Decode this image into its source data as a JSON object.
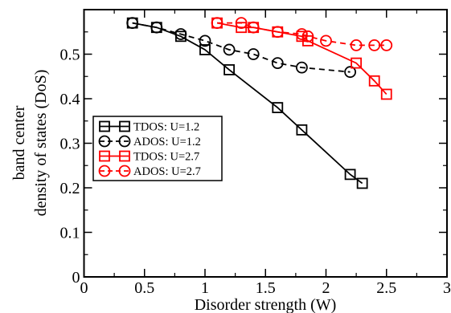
{
  "chart_data": {
    "type": "line",
    "title": "",
    "xlabel": "Disorder strength (W)",
    "ylabel_lines": [
      "band center",
      "density of states (DoS)"
    ],
    "xlim": [
      0,
      3
    ],
    "ylim": [
      0,
      0.6
    ],
    "xticks": [
      0,
      0.5,
      1,
      1.5,
      2,
      2.5,
      3
    ],
    "xtick_labels": [
      "0",
      "0.5",
      "1",
      "1.5",
      "2",
      "2.5",
      "3"
    ],
    "yticks": [
      0,
      0.1,
      0.2,
      0.3,
      0.4,
      0.5
    ],
    "ytick_labels": [
      "0",
      "0.1",
      "0.2",
      "0.3",
      "0.4",
      "0.5"
    ],
    "grid": false,
    "legend_position": "center-left",
    "series": [
      {
        "name": "TDOS: U=1.2",
        "color": "#000000",
        "marker": "square",
        "dash": "solid",
        "x": [
          0.4,
          0.6,
          0.8,
          1.0,
          1.2,
          1.6,
          1.8,
          2.2,
          2.3
        ],
        "y": [
          0.57,
          0.56,
          0.54,
          0.51,
          0.465,
          0.38,
          0.33,
          0.23,
          0.21
        ]
      },
      {
        "name": "ADOS: U=1.2",
        "color": "#000000",
        "marker": "circle",
        "dash": "dashed",
        "x": [
          0.4,
          0.6,
          0.8,
          1.0,
          1.2,
          1.4,
          1.6,
          1.8,
          2.2
        ],
        "y": [
          0.57,
          0.56,
          0.545,
          0.53,
          0.51,
          0.5,
          0.48,
          0.47,
          0.46
        ]
      },
      {
        "name": "TDOS: U=2.7",
        "color": "#ff0000",
        "marker": "square",
        "dash": "solid",
        "x": [
          1.1,
          1.3,
          1.4,
          1.6,
          1.8,
          1.85,
          2.25,
          2.4,
          2.5
        ],
        "y": [
          0.57,
          0.56,
          0.56,
          0.55,
          0.54,
          0.53,
          0.48,
          0.44,
          0.41
        ]
      },
      {
        "name": "ADOS: U=2.7",
        "color": "#ff0000",
        "marker": "circle",
        "dash": "dashed",
        "x": [
          1.1,
          1.3,
          1.4,
          1.6,
          1.8,
          1.85,
          2.0,
          2.25,
          2.4,
          2.5
        ],
        "y": [
          0.57,
          0.57,
          0.56,
          0.55,
          0.545,
          0.54,
          0.53,
          0.52,
          0.52,
          0.52
        ]
      }
    ]
  }
}
